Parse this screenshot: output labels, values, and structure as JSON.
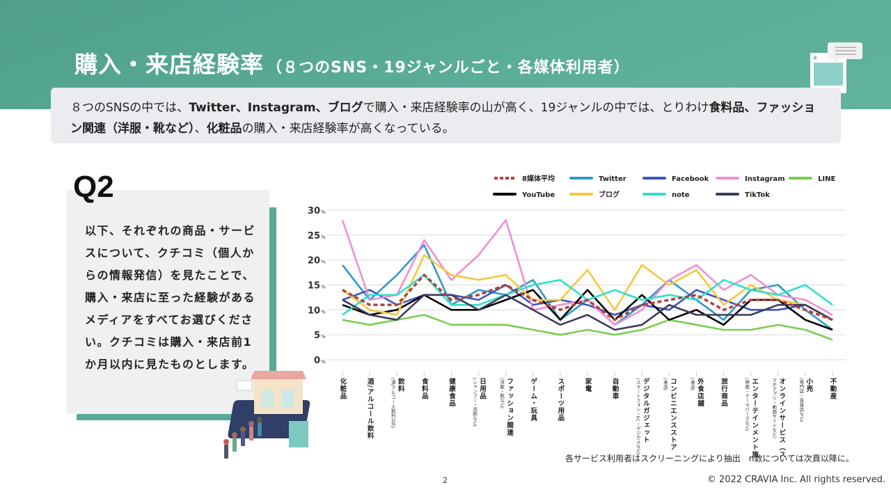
{
  "header": {
    "title": "購入・来店経験率",
    "subtitle": "（８つのSNS・19ジャンルごと・各媒体利用者）",
    "summary": [
      {
        "text": "８つのSNSの中では、",
        "bold": false
      },
      {
        "text": "Twitter、Instagram、ブログ",
        "bold": true
      },
      {
        "text": "で購入・来店経験率の山が高く、19ジャンルの中では、とりわけ",
        "bold": false
      },
      {
        "text": "食料品、",
        "bold": true
      },
      {
        "text": "ファッション関連（洋服・靴など）",
        "bold": true
      },
      {
        "text": "、",
        "bold": false
      },
      {
        "text": "化粧品",
        "bold": true
      },
      {
        "text": "の購入・来店経験率が高くなっている。",
        "bold": false
      }
    ]
  },
  "question": {
    "label": "Q2",
    "text": "以下、それぞれの商品・サービスについて、クチコミ（個人からの情報発信）を見たことで、購入・来店に至った経験があるメディアをすべてお選びください。クチコミは購入・来店前1か月以内に見たものとします。"
  },
  "chart_data": {
    "type": "line",
    "title": "",
    "xlabel": "",
    "ylabel": "",
    "ylim": [
      0,
      30
    ],
    "yticks": [
      0,
      5,
      10,
      15,
      20,
      25,
      30
    ],
    "ytick_unit": "%",
    "grid": true,
    "legend": "top",
    "categories": [
      {
        "main": "化粧品",
        "sub": ""
      },
      {
        "main": "酒/アルコール飲料",
        "sub": ""
      },
      {
        "main": "飲料",
        "sub": "(酒/アルコール飲料以外)"
      },
      {
        "main": "食料品",
        "sub": ""
      },
      {
        "main": "健康食品",
        "sub": ""
      },
      {
        "main": "日用品",
        "sub": "(シャンプー・洗剤など)"
      },
      {
        "main": "ファッション関連",
        "sub": "(洋服・靴など)"
      },
      {
        "main": "ゲーム・玩具",
        "sub": ""
      },
      {
        "main": "スポーツ用品",
        "sub": ""
      },
      {
        "main": "家電",
        "sub": ""
      },
      {
        "main": "自動車",
        "sub": ""
      },
      {
        "main": "デジタルガジェット",
        "sub": "(スマートフォン・PC・デジカメなど)"
      },
      {
        "main": "コンビニエンスストア",
        "sub": "(来店)"
      },
      {
        "main": "外食店舗",
        "sub": "(来店)"
      },
      {
        "main": "旅行商品",
        "sub": ""
      },
      {
        "main": "エンターテインメント施設",
        "sub": "(映画・テーマパークなど)"
      },
      {
        "main": "オンラインサービス（ス",
        "sub": "マホアプリ・動画サイトなど）"
      },
      {
        "main": "小売",
        "sub": "(専門店・百貨店など)"
      },
      {
        "main": "不動産",
        "sub": ""
      }
    ],
    "series": [
      {
        "name": "8媒体平均",
        "color": "#b0413e",
        "dashed": true,
        "values": [
          14,
          11,
          11,
          17,
          12,
          13,
          15,
          12,
          10,
          12,
          8,
          11,
          12,
          13,
          10,
          12,
          12,
          10,
          8
        ]
      },
      {
        "name": "Twitter",
        "color": "#2e9ac8",
        "values": [
          19,
          12,
          17,
          23,
          11,
          14,
          13,
          16,
          8,
          12,
          7,
          11,
          16,
          12,
          8,
          14,
          15,
          10,
          6
        ]
      },
      {
        "name": "Facebook",
        "color": "#3a56c0",
        "values": [
          12,
          14,
          11,
          13,
          13,
          12,
          15,
          11,
          12,
          11,
          9,
          11,
          10,
          14,
          12,
          10,
          10,
          11,
          8
        ]
      },
      {
        "name": "Instagram",
        "color": "#f08fd0",
        "values": [
          28,
          12,
          13,
          24,
          16,
          21,
          28,
          10,
          11,
          12,
          7,
          10,
          16,
          19,
          14,
          17,
          13,
          12,
          9
        ]
      },
      {
        "name": "LINE",
        "color": "#7ccc4e",
        "values": [
          8,
          7,
          8,
          9,
          7,
          7,
          7,
          6,
          5,
          6,
          5,
          6,
          8,
          7,
          6,
          6,
          7,
          6,
          4
        ]
      },
      {
        "name": "YouTube",
        "color": "#000000",
        "values": [
          11,
          9,
          10,
          13,
          10,
          10,
          12,
          14,
          8,
          14,
          8,
          13,
          8,
          10,
          7,
          12,
          12,
          8,
          6
        ]
      },
      {
        "name": "ブログ",
        "color": "#f6c73c",
        "values": [
          14,
          10,
          9,
          21,
          17,
          16,
          17,
          12,
          12,
          18,
          10,
          19,
          15,
          18,
          11,
          15,
          12,
          11,
          8
        ]
      },
      {
        "name": "note",
        "color": "#2de0cc",
        "values": [
          9,
          13,
          13,
          17,
          11,
          11,
          13,
          15,
          16,
          12,
          14,
          12,
          13,
          12,
          16,
          14,
          13,
          15,
          11
        ]
      },
      {
        "name": "TikTok",
        "color": "#3b3b5c",
        "values": [
          12,
          9,
          8,
          13,
          13,
          10,
          13,
          10,
          7,
          9,
          6,
          7,
          11,
          9,
          9,
          9,
          11,
          11,
          8
        ]
      }
    ]
  },
  "footer": {
    "note": "各サービス利用者はスクリーニングにより抽出　n数については次頁以降に。",
    "page": "2",
    "copyright": "© 2022 CRAVIA Inc. All rights reserved."
  }
}
